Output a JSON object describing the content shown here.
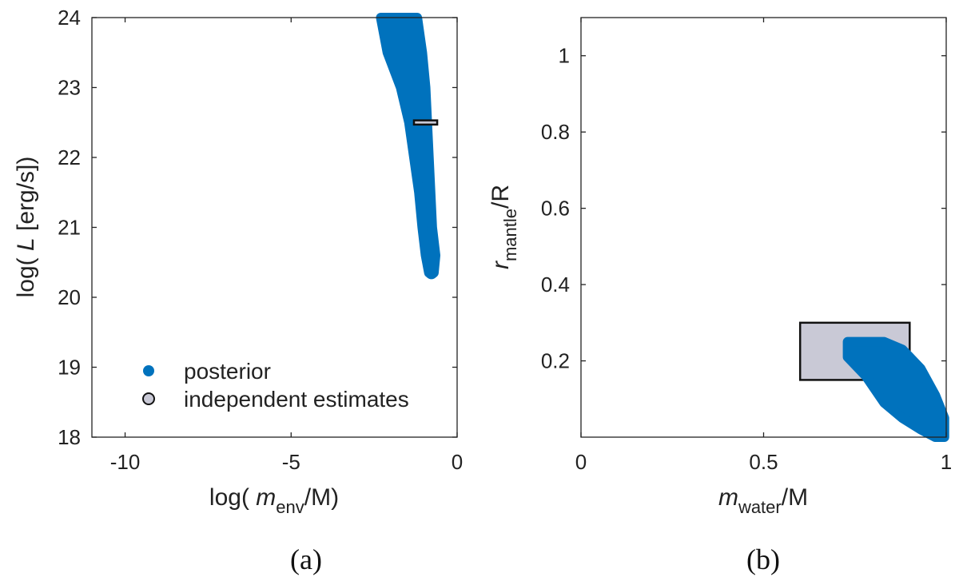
{
  "colors": {
    "posterior": "#0072bd",
    "estimate_fill": "#c9c9d6",
    "axis": "#222222"
  },
  "legend": {
    "posterior_label": "posterior",
    "estimate_label": "independent estimates",
    "placement": "lower-left of panel (a)"
  },
  "chart_data": [
    {
      "type": "scatter",
      "panel_label": "(a)",
      "xlabel": {
        "prefix": "log(",
        "italic": "m",
        "sub": "env",
        "suffix": "/M)"
      },
      "ylabel": {
        "prefix": "log(",
        "italic": "L",
        "suffix": "[erg/s])"
      },
      "xlim": [
        -11,
        0
      ],
      "ylim": [
        18,
        24
      ],
      "xticks": [
        -10,
        -5,
        0
      ],
      "yticks": [
        18,
        19,
        20,
        21,
        22,
        23,
        24
      ],
      "xtick_labels": [
        "-10",
        "-5",
        "0"
      ],
      "ytick_labels": [
        "18",
        "19",
        "20",
        "21",
        "22",
        "23",
        "24"
      ],
      "grid": false,
      "posterior_region": [
        {
          "x_lo": -2.3,
          "x_hi": -1.2,
          "y": 24.0
        },
        {
          "x_lo": -2.1,
          "x_hi": -1.05,
          "y": 23.5
        },
        {
          "x_lo": -1.7,
          "x_hi": -0.95,
          "y": 23.0
        },
        {
          "x_lo": -1.45,
          "x_hi": -0.9,
          "y": 22.5
        },
        {
          "x_lo": -1.3,
          "x_hi": -0.85,
          "y": 22.0
        },
        {
          "x_lo": -1.15,
          "x_hi": -0.8,
          "y": 21.5
        },
        {
          "x_lo": -1.05,
          "x_hi": -0.75,
          "y": 21.0
        },
        {
          "x_lo": -0.95,
          "x_hi": -0.65,
          "y": 20.6
        },
        {
          "x_lo": -0.85,
          "x_hi": -0.7,
          "y": 20.35
        }
      ],
      "independent_estimate": {
        "x_range": [
          -1.3,
          -0.6
        ],
        "y_range": [
          22.47,
          22.53
        ]
      }
    },
    {
      "type": "scatter",
      "panel_label": "(b)",
      "xlabel": {
        "italic": "m",
        "sub": "water",
        "suffix": "/M"
      },
      "ylabel": {
        "italic": "r",
        "sub": "mantle",
        "suffix": "/R"
      },
      "xlim": [
        0,
        1
      ],
      "ylim": [
        0,
        1.1
      ],
      "xticks": [
        0,
        0.5,
        1
      ],
      "yticks": [
        0.2,
        0.4,
        0.6,
        0.8,
        1
      ],
      "xtick_labels": [
        "0",
        "0.5",
        "1"
      ],
      "ytick_labels": [
        "0.2",
        "0.4",
        "0.6",
        "0.8",
        "1"
      ],
      "grid": false,
      "posterior_region": [
        {
          "x": 0.73,
          "y_lo": 0.21,
          "y_hi": 0.25
        },
        {
          "x": 0.78,
          "y_lo": 0.16,
          "y_hi": 0.25
        },
        {
          "x": 0.83,
          "y_lo": 0.09,
          "y_hi": 0.25
        },
        {
          "x": 0.88,
          "y_lo": 0.05,
          "y_hi": 0.23
        },
        {
          "x": 0.93,
          "y_lo": 0.02,
          "y_hi": 0.18
        },
        {
          "x": 0.97,
          "y_lo": 0.0,
          "y_hi": 0.11
        },
        {
          "x": 0.995,
          "y_lo": 0.0,
          "y_hi": 0.05
        }
      ],
      "independent_estimate": {
        "x_range": [
          0.6,
          0.9
        ],
        "y_range": [
          0.15,
          0.3
        ]
      }
    }
  ]
}
